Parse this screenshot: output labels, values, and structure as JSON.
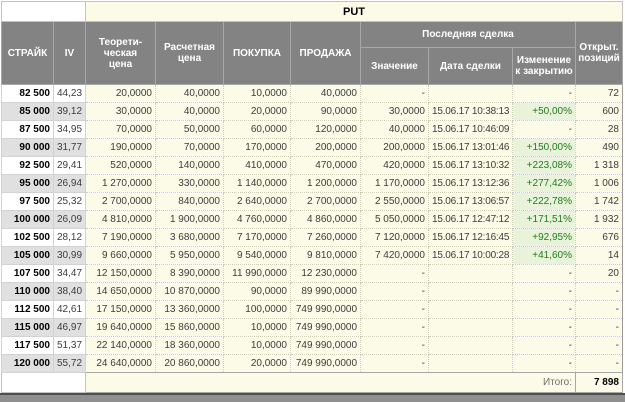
{
  "table": {
    "put_label": "PUT",
    "headers": {
      "strike": "СТРАЙК",
      "iv": "IV",
      "theor": "Теорети-\nческая\nцена",
      "calc": "Расчетная\nцена",
      "buy": "ПОКУПКА",
      "sell": "ПРОДАЖА",
      "last_trade": "Последняя сделка",
      "value": "Значение",
      "date": "Дата сделки",
      "change": "Изменение\nк закрытию",
      "open": "Открыт.\nпозиций"
    },
    "rows": [
      {
        "strike": "82 500",
        "iv": "44,23",
        "theor": "20,0000",
        "calc": "40,0000",
        "buy": "10,0000",
        "sell": "40,0000",
        "value": "-",
        "date": "",
        "change": "-",
        "open": "72"
      },
      {
        "strike": "85 000",
        "iv": "39,12",
        "theor": "30,0000",
        "calc": "40,0000",
        "buy": "20,0000",
        "sell": "90,0000",
        "value": "30,0000",
        "date": "15.06.17 10:38:13",
        "change": "+50,00%",
        "open": "600"
      },
      {
        "strike": "87 500",
        "iv": "34,95",
        "theor": "70,0000",
        "calc": "50,0000",
        "buy": "60,0000",
        "sell": "120,0000",
        "value": "40,0000",
        "date": "15.06.17 10:46:09",
        "change": "-",
        "open": "28"
      },
      {
        "strike": "90 000",
        "iv": "31,77",
        "theor": "190,0000",
        "calc": "70,0000",
        "buy": "170,0000",
        "sell": "200,0000",
        "value": "200,0000",
        "date": "15.06.17 13:01:46",
        "change": "+150,00%",
        "open": "490"
      },
      {
        "strike": "92 500",
        "iv": "29,41",
        "theor": "520,0000",
        "calc": "140,0000",
        "buy": "410,0000",
        "sell": "470,0000",
        "value": "420,0000",
        "date": "15.06.17 13:10:32",
        "change": "+223,08%",
        "open": "1 318"
      },
      {
        "strike": "95 000",
        "iv": "26,94",
        "theor": "1 270,0000",
        "calc": "330,0000",
        "buy": "1 140,0000",
        "sell": "1 200,0000",
        "value": "1 170,0000",
        "date": "15.06.17 13:12:36",
        "change": "+277,42%",
        "open": "1 006"
      },
      {
        "strike": "97 500",
        "iv": "25,32",
        "theor": "2 700,0000",
        "calc": "840,0000",
        "buy": "2 640,0000",
        "sell": "2 700,0000",
        "value": "2 550,0000",
        "date": "15.06.17 13:06:57",
        "change": "+222,78%",
        "open": "1 742"
      },
      {
        "strike": "100 000",
        "iv": "26,09",
        "theor": "4 810,0000",
        "calc": "1 900,0000",
        "buy": "4 760,0000",
        "sell": "4 860,0000",
        "value": "5 050,0000",
        "date": "15.06.17 12:47:12",
        "change": "+171,51%",
        "open": "1 932"
      },
      {
        "strike": "102 500",
        "iv": "28,12",
        "theor": "7 190,0000",
        "calc": "3 680,0000",
        "buy": "7 170,0000",
        "sell": "7 260,0000",
        "value": "7 120,0000",
        "date": "15.06.17 12:16:45",
        "change": "+92,95%",
        "open": "676"
      },
      {
        "strike": "105 000",
        "iv": "30,99",
        "theor": "9 660,0000",
        "calc": "5 950,0000",
        "buy": "9 540,0000",
        "sell": "9 810,0000",
        "value": "7 420,0000",
        "date": "15.06.17 10:00:28",
        "change": "+41,60%",
        "open": "14"
      },
      {
        "strike": "107 500",
        "iv": "34,47",
        "theor": "12 150,0000",
        "calc": "8 390,0000",
        "buy": "11 990,0000",
        "sell": "12 230,0000",
        "value": "-",
        "date": "",
        "change": "-",
        "open": "20"
      },
      {
        "strike": "110 000",
        "iv": "38,40",
        "theor": "14 650,0000",
        "calc": "10 870,0000",
        "buy": "90,0000",
        "sell": "89 990,0000",
        "value": "-",
        "date": "",
        "change": "-",
        "open": "-"
      },
      {
        "strike": "112 500",
        "iv": "42,61",
        "theor": "17 150,0000",
        "calc": "13 360,0000",
        "buy": "100,0000",
        "sell": "749 990,0000",
        "value": "-",
        "date": "",
        "change": "-",
        "open": "-"
      },
      {
        "strike": "115 000",
        "iv": "46,97",
        "theor": "19 640,0000",
        "calc": "15 860,0000",
        "buy": "10,0000",
        "sell": "749 990,0000",
        "value": "-",
        "date": "",
        "change": "-",
        "open": "-"
      },
      {
        "strike": "117 500",
        "iv": "51,37",
        "theor": "22 140,0000",
        "calc": "18 360,0000",
        "buy": "10,0000",
        "sell": "749 990,0000",
        "value": "-",
        "date": "",
        "change": "-",
        "open": "-"
      },
      {
        "strike": "120 000",
        "iv": "55,72",
        "theor": "24 640,0000",
        "calc": "20 860,0000",
        "buy": "20,0000",
        "sell": "749 990,0000",
        "value": "-",
        "date": "",
        "change": "-",
        "open": "-"
      }
    ],
    "footer": {
      "label": "Итого:",
      "total": "7 898"
    }
  },
  "colors": {
    "header_bg": "#838383",
    "data_bg": "#fbfbe7",
    "shaded_bg": "#e0e0e0",
    "positive_text": "#237a23",
    "positive_bg": "#e9f3da"
  }
}
